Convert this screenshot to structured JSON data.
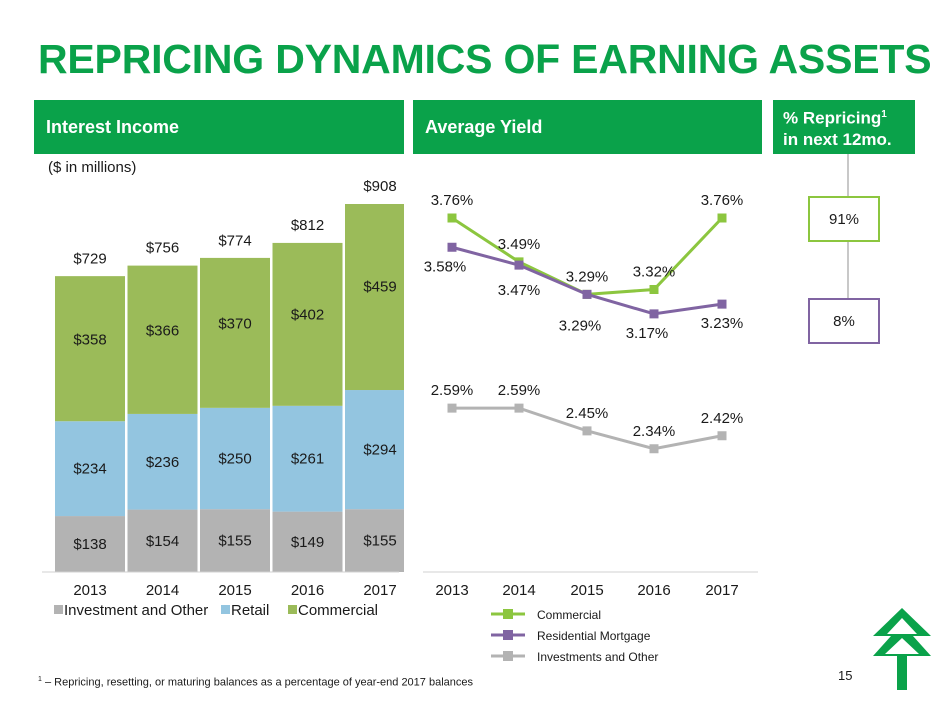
{
  "title": "REPRICING DYNAMICS OF EARNING ASSETS",
  "headers": {
    "interest_income": "Interest Income",
    "average_yield": "Average Yield",
    "repricing_line1": "% Repricing",
    "repricing_sup": "1",
    "repricing_line2": "in next 12mo."
  },
  "units_label": "($ in millions)",
  "colors": {
    "brand_green": "#0aa24a",
    "commercial": "#9bbb59",
    "retail": "#93c5e0",
    "investment": "#b3b3b3",
    "commercial_line": "#8cc63f",
    "residential_line": "#8064a2",
    "investments_line": "#b3b3b3"
  },
  "repricing": {
    "commercial": "91%",
    "residential": "8%"
  },
  "footnote": {
    "marker": "1",
    "text": " – Repricing, resetting, or maturing balances as a percentage of year-end 2017 balances"
  },
  "page_number": "15",
  "chart_data": [
    {
      "type": "bar",
      "stacked": true,
      "categories": [
        "2013",
        "2014",
        "2015",
        "2016",
        "2017"
      ],
      "series": [
        {
          "name": "Investment and Other",
          "values": [
            138,
            154,
            155,
            149,
            155
          ],
          "labels": [
            "$138",
            "$154",
            "$155",
            "$149",
            "$155"
          ]
        },
        {
          "name": "Retail",
          "values": [
            234,
            236,
            250,
            261,
            294
          ],
          "labels": [
            "$234",
            "$236",
            "$250",
            "$261",
            "$294"
          ]
        },
        {
          "name": "Commercial",
          "values": [
            358,
            366,
            370,
            402,
            459
          ],
          "labels": [
            "$358",
            "$366",
            "$370",
            "$402",
            "$459"
          ]
        }
      ],
      "totals": [
        729,
        756,
        774,
        812,
        908
      ],
      "total_labels": [
        "$729",
        "$756",
        "$774",
        "$812",
        "$908"
      ],
      "ylim": [
        0,
        908
      ],
      "grid": false,
      "legend_position": "bottom"
    },
    {
      "type": "line",
      "x": [
        "2013",
        "2014",
        "2015",
        "2016",
        "2017"
      ],
      "series": [
        {
          "name": "Commercial",
          "values": [
            3.76,
            3.49,
            3.29,
            3.32,
            3.76
          ],
          "labels": [
            "3.76%",
            "3.49%",
            "3.29%",
            "3.32%",
            "3.76%"
          ]
        },
        {
          "name": "Residential Mortgage",
          "values": [
            3.58,
            3.47,
            3.29,
            3.17,
            3.23
          ],
          "labels": [
            "3.58%",
            "3.47%",
            "3.29%",
            "3.17%",
            "3.23%"
          ]
        },
        {
          "name": "Investments and Other",
          "values": [
            2.59,
            2.59,
            2.45,
            2.34,
            2.42
          ],
          "labels": [
            "2.59%",
            "2.59%",
            "2.45%",
            "2.34%",
            "2.42%"
          ]
        }
      ],
      "ylim": [
        1.9,
        3.9
      ],
      "grid": false,
      "legend_position": "bottom"
    }
  ]
}
